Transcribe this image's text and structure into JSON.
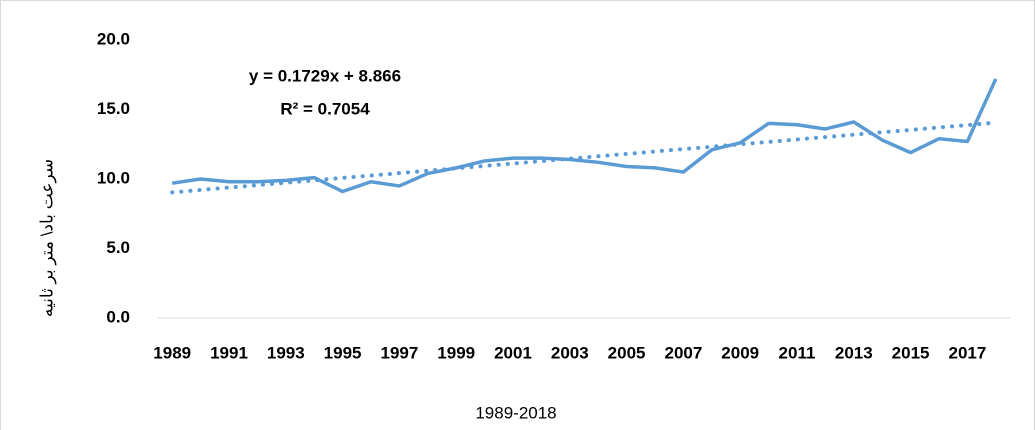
{
  "chart_data": {
    "type": "line",
    "x_label": "1989-2018",
    "y_label": "سرعت باد\\ متر بر ثانیه",
    "categories": [
      "1989",
      null,
      "1991",
      null,
      "1993",
      null,
      "1995",
      null,
      "1997",
      null,
      "1999",
      null,
      "2001",
      null,
      "2003",
      null,
      "2005",
      null,
      "2007",
      null,
      "2009",
      null,
      "2011",
      null,
      "2013",
      null,
      "2015",
      null,
      "2017",
      null
    ],
    "series": [
      {
        "color": "#5b9bd5",
        "values": [
          9.7,
          10.0,
          9.8,
          9.8,
          9.9,
          10.1,
          9.1,
          9.8,
          9.5,
          10.4,
          10.8,
          11.3,
          11.5,
          11.5,
          11.4,
          11.2,
          10.9,
          10.8,
          10.5,
          12.1,
          12.6,
          14.0,
          13.9,
          13.6,
          14.1,
          12.8,
          11.9,
          12.9,
          12.7,
          17.2
        ]
      }
    ],
    "trendline": {
      "slope": 0.1729,
      "intercept": 8.866,
      "equation": "y = 0.1729x + 8.866",
      "r_squared": "R² = 0.7054",
      "color": "#5b9bd5"
    },
    "ylim": [
      0,
      20
    ],
    "yticks": [
      {
        "value": 0,
        "label": "0.0"
      },
      {
        "value": 5,
        "label": "5.0"
      },
      {
        "value": 10,
        "label": "10.0"
      },
      {
        "value": 15,
        "label": "15.0"
      },
      {
        "value": 20,
        "label": "20.0"
      }
    ],
    "grid": false
  }
}
